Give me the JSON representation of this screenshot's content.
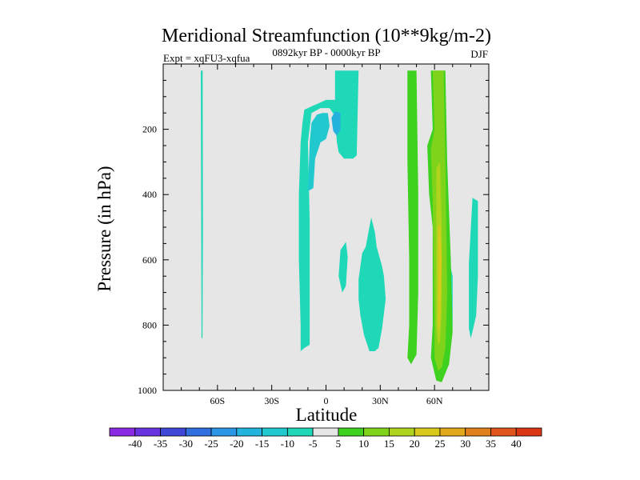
{
  "chart_data": {
    "type": "contour",
    "title": "Meridional Streamfunction (10**9kg/m-2)",
    "subtitle_left": "Expt = xqFU3-xqfua",
    "subtitle_center": "0892kyr BP - 0000kyr BP",
    "subtitle_right": "DJF",
    "xlabel": "Latitude",
    "ylabel": "Pressure (in hPa)",
    "xlim": [
      -90,
      90
    ],
    "ylim": [
      1000,
      0
    ],
    "x_ticks": [
      {
        "value": -60,
        "label": "60S"
      },
      {
        "value": -30,
        "label": "30S"
      },
      {
        "value": 0,
        "label": "0"
      },
      {
        "value": 30,
        "label": "30N"
      },
      {
        "value": 60,
        "label": "60N"
      }
    ],
    "y_ticks": [
      {
        "value": 200,
        "label": "200"
      },
      {
        "value": 400,
        "label": "400"
      },
      {
        "value": 600,
        "label": "600"
      },
      {
        "value": 800,
        "label": "800"
      },
      {
        "value": 1000,
        "label": "1000"
      }
    ],
    "background_color": "#e6e6e6",
    "colorbar": {
      "labels": [
        "-40",
        "-35",
        "-30",
        "-25",
        "-20",
        "-15",
        "-10",
        "-5",
        "5",
        "10",
        "15",
        "20",
        "25",
        "30",
        "35",
        "40"
      ],
      "colors": [
        "#8a2be2",
        "#6a33e0",
        "#3f48d6",
        "#2f6fe0",
        "#2b95e6",
        "#24b2df",
        "#21c9cf",
        "#1ed8b8",
        "#e6e6e6",
        "#3fd11f",
        "#7fd31a",
        "#aed41d",
        "#d8c91a",
        "#e0a81a",
        "#e0801c",
        "#e0551c",
        "#dc3513"
      ]
    },
    "regions": [
      {
        "level": "-5",
        "color": "#1ed8b8",
        "points": [
          [
            -69.2,
            20
          ],
          [
            -69,
            500
          ],
          [
            -68.8,
            840
          ],
          [
            -68.3,
            840
          ],
          [
            -68,
            500
          ],
          [
            -68.2,
            20
          ]
        ]
      },
      {
        "level": "-5",
        "color": "#1ed8b8",
        "points": [
          [
            -14,
            880
          ],
          [
            -12,
            870
          ],
          [
            -9,
            860
          ],
          [
            -9,
            480
          ],
          [
            -10,
            240
          ],
          [
            -8,
            150
          ],
          [
            -3,
            135
          ],
          [
            2,
            135
          ],
          [
            5,
            160
          ],
          [
            6,
            240
          ],
          [
            7,
            270
          ],
          [
            10,
            290
          ],
          [
            15,
            290
          ],
          [
            17,
            280
          ],
          [
            18,
            20
          ],
          [
            5,
            20
          ],
          [
            5,
            110
          ],
          [
            0,
            110
          ],
          [
            -4,
            120
          ],
          [
            -8,
            130
          ],
          [
            -12,
            140
          ],
          [
            -13,
            180
          ],
          [
            -14,
            240
          ],
          [
            -15,
            400
          ],
          [
            -15,
            600
          ],
          [
            -14,
            800
          ]
        ]
      },
      {
        "level": "-5",
        "color": "#1ed8b8",
        "points": [
          [
            7,
            650
          ],
          [
            8,
            570
          ],
          [
            11,
            545
          ],
          [
            12,
            590
          ],
          [
            11,
            680
          ],
          [
            9,
            700
          ]
        ]
      },
      {
        "level": "-5",
        "color": "#1ed8b8",
        "points": [
          [
            18,
            660
          ],
          [
            20,
            580
          ],
          [
            22,
            560
          ],
          [
            25,
            470
          ],
          [
            27,
            515
          ],
          [
            28,
            560
          ],
          [
            31,
            620
          ],
          [
            32,
            650
          ],
          [
            33,
            720
          ],
          [
            31,
            810
          ],
          [
            29,
            870
          ],
          [
            27,
            880
          ],
          [
            24,
            880
          ],
          [
            21,
            830
          ],
          [
            19,
            770
          ],
          [
            18,
            720
          ]
        ]
      },
      {
        "level": "-5",
        "color": "#1ed8b8",
        "points": [
          [
            79,
            610
          ],
          [
            81,
            410
          ],
          [
            84,
            420
          ],
          [
            84,
            650
          ],
          [
            83,
            770
          ],
          [
            81,
            820
          ],
          [
            80,
            840
          ],
          [
            79,
            810
          ]
        ]
      },
      {
        "level": "-5",
        "color": "#1ed8b8",
        "points": [
          [
            68,
            600
          ],
          [
            70,
            650
          ],
          [
            70,
            800
          ],
          [
            68,
            860
          ],
          [
            66,
            860
          ]
        ]
      },
      {
        "level": "-10",
        "color": "#21c9cf",
        "points": [
          [
            -10,
            390
          ],
          [
            -9,
            240
          ],
          [
            -8,
            180
          ],
          [
            -5,
            155
          ],
          [
            -2,
            150
          ],
          [
            1,
            150
          ],
          [
            2,
            190
          ],
          [
            0,
            230
          ],
          [
            -3,
            240
          ],
          [
            -6,
            290
          ],
          [
            -7,
            380
          ]
        ]
      },
      {
        "level": "-15",
        "color": "#24b2df",
        "points": [
          [
            4,
            205
          ],
          [
            3,
            165
          ],
          [
            5,
            145
          ],
          [
            8,
            150
          ],
          [
            8,
            200
          ],
          [
            6,
            220
          ]
        ]
      },
      {
        "level": "5",
        "color": "#3fd11f",
        "points": [
          [
            45,
            20
          ],
          [
            45,
            300
          ],
          [
            46,
            600
          ],
          [
            46,
            800
          ],
          [
            45,
            900
          ],
          [
            47,
            920
          ],
          [
            50,
            890
          ],
          [
            51,
            700
          ],
          [
            51,
            400
          ],
          [
            50,
            20
          ]
        ]
      },
      {
        "level": "5",
        "color": "#3fd11f",
        "points": [
          [
            58,
            20
          ],
          [
            59,
            200
          ],
          [
            56,
            250
          ],
          [
            57,
            400
          ],
          [
            59,
            500
          ],
          [
            59,
            800
          ],
          [
            58,
            900
          ],
          [
            61,
            970
          ],
          [
            64,
            975
          ],
          [
            68,
            920
          ],
          [
            70,
            820
          ],
          [
            69,
            600
          ],
          [
            67,
            300
          ],
          [
            66,
            20
          ]
        ]
      },
      {
        "level": "10",
        "color": "#7fd31a",
        "points": [
          [
            59,
            20
          ],
          [
            60,
            200
          ],
          [
            58,
            260
          ],
          [
            59,
            420
          ],
          [
            60,
            800
          ],
          [
            60,
            900
          ],
          [
            62,
            940
          ],
          [
            64,
            930
          ],
          [
            66,
            870
          ],
          [
            67,
            700
          ],
          [
            66,
            300
          ],
          [
            65,
            20
          ]
        ]
      },
      {
        "level": "15",
        "color": "#aed41d",
        "points": [
          [
            61,
            320
          ],
          [
            63,
            300
          ],
          [
            64,
            500
          ],
          [
            64,
            750
          ],
          [
            63,
            850
          ],
          [
            62,
            860
          ],
          [
            61,
            800
          ],
          [
            61,
            500
          ]
        ]
      },
      {
        "level": "20",
        "color": "#d8c91a",
        "points": [
          [
            62,
            500
          ],
          [
            63,
            490
          ],
          [
            64,
            600
          ],
          [
            63,
            800
          ],
          [
            62,
            820
          ],
          [
            62,
            650
          ]
        ]
      }
    ]
  }
}
